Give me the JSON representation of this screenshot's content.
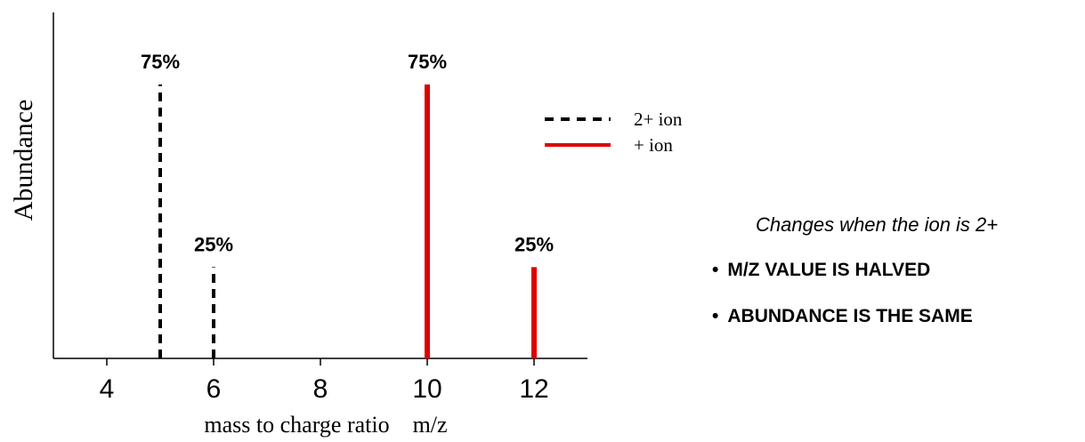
{
  "chart_data": {
    "type": "bar",
    "xlabel": "mass to charge ratio    m/z",
    "ylabel": "Abundance",
    "xlim": [
      3,
      13
    ],
    "ylim": [
      0,
      100
    ],
    "x_ticks": [
      4,
      6,
      8,
      10,
      12
    ],
    "legend_placement": "upper-middle",
    "grid": false,
    "series": [
      {
        "name": "2+ ion",
        "color": "#000000",
        "line_style": "dashed",
        "x": [
          5,
          6
        ],
        "values": [
          75,
          25
        ],
        "labels": [
          "75%",
          "25%"
        ]
      },
      {
        "name": "+ ion",
        "color": "#dd0000",
        "line_style": "solid",
        "x": [
          10,
          12
        ],
        "values": [
          75,
          25
        ],
        "labels": [
          "75%",
          "25%"
        ]
      }
    ]
  },
  "notes": {
    "heading": "Changes when the ion is 2+",
    "items": [
      "M/Z VALUE IS HALVED",
      "ABUNDANCE IS THE SAME"
    ]
  }
}
